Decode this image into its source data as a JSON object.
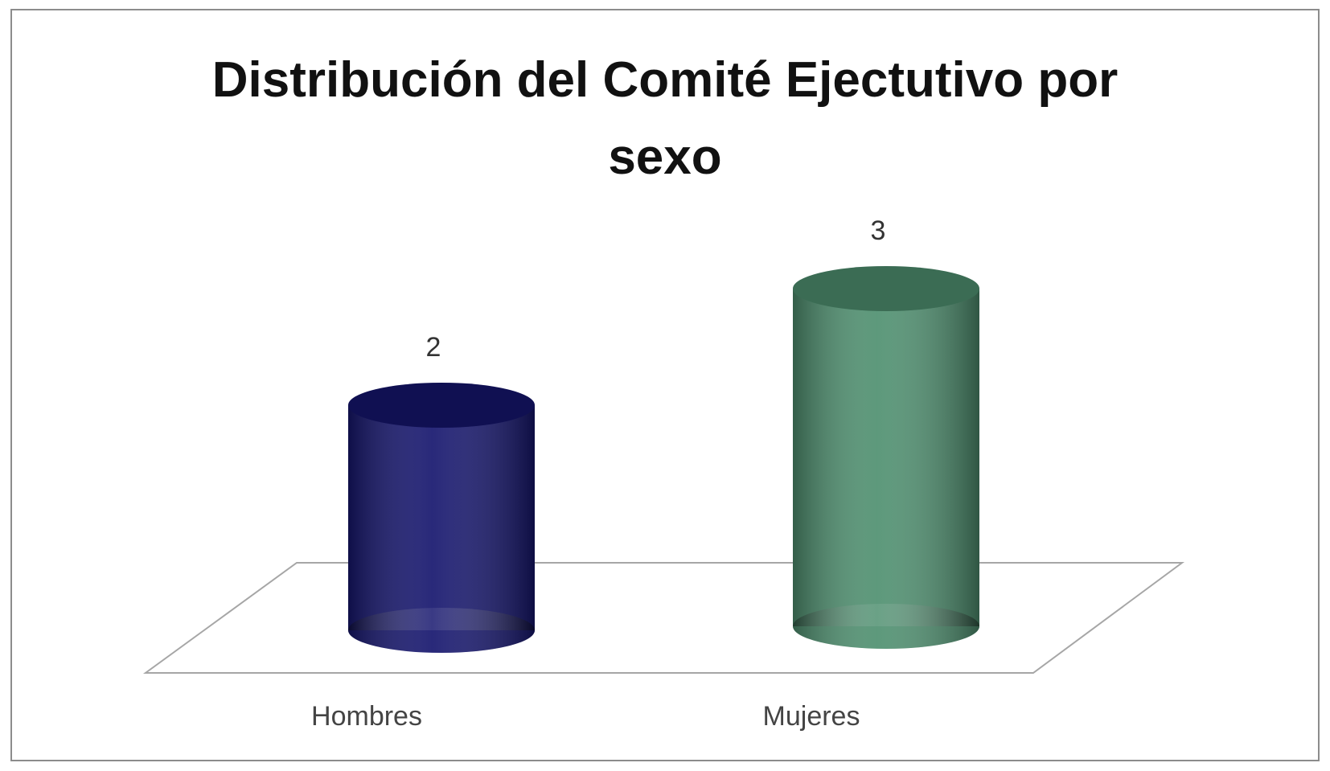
{
  "chart_data": {
    "type": "cylinder",
    "title": "Distribución del Comité Ejectutivo por sexo",
    "categories": [
      "Hombres",
      "Mujeres"
    ],
    "values": [
      2,
      3
    ],
    "colors": [
      "#16166e",
      "#4f9070"
    ]
  }
}
